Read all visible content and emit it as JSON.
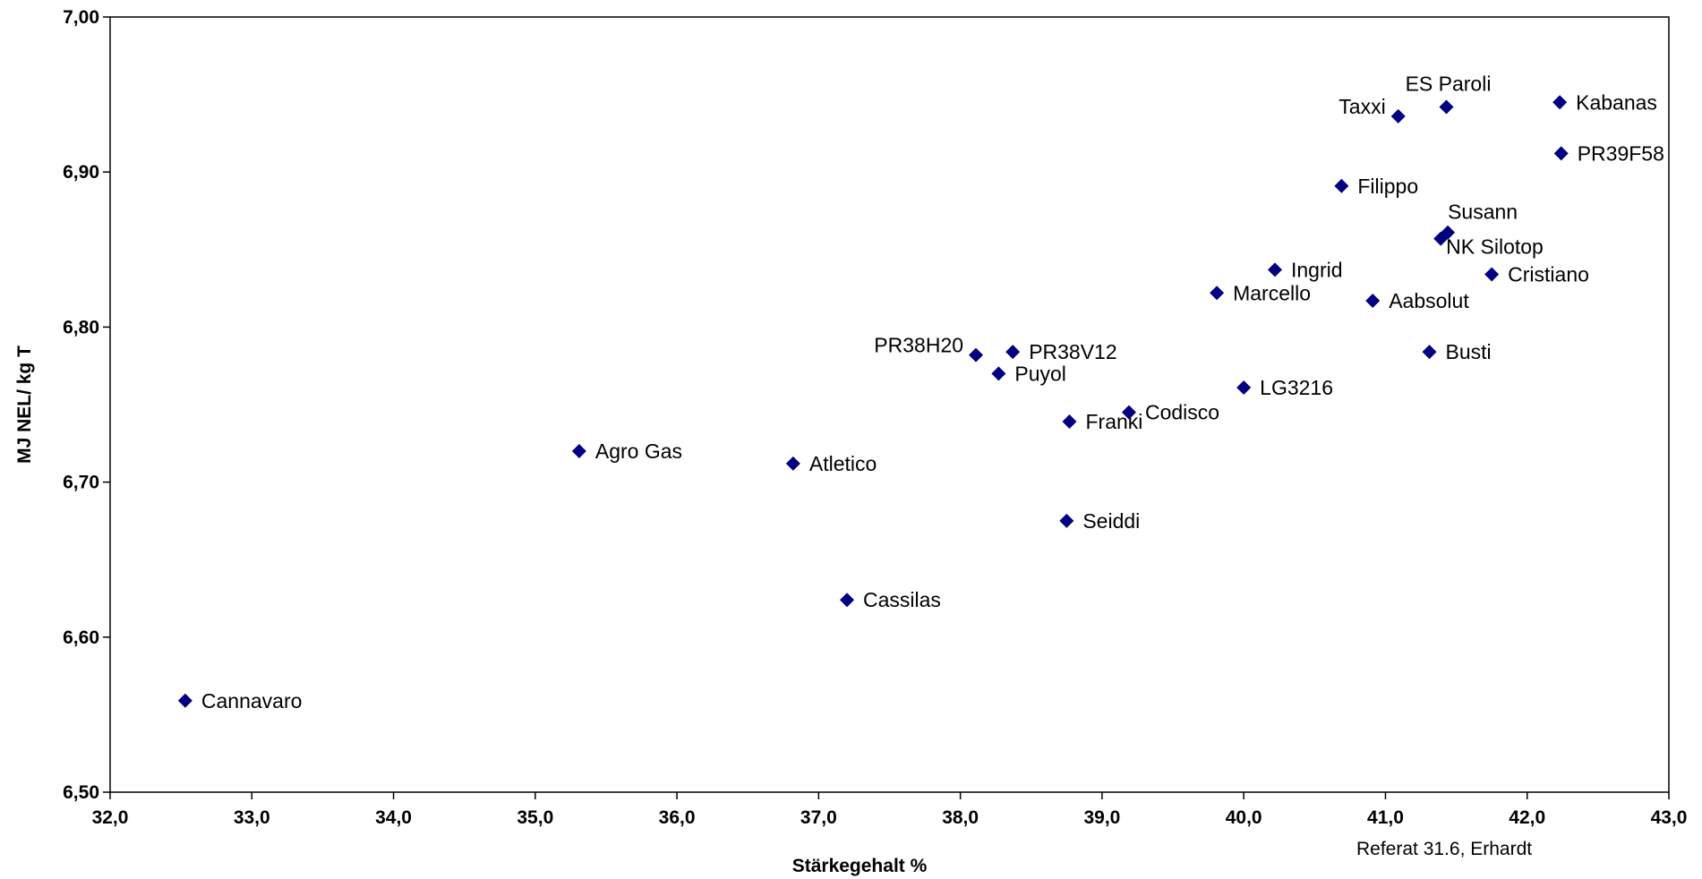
{
  "chart_data": {
    "type": "scatter",
    "xlabel": "Stärkegehalt %",
    "ylabel": "MJ NEL/ kg T",
    "xlim": [
      32,
      43
    ],
    "ylim": [
      6.5,
      7.0
    ],
    "x_ticks": [
      "32,0",
      "33,0",
      "34,0",
      "35,0",
      "36,0",
      "37,0",
      "38,0",
      "39,0",
      "40,0",
      "41,0",
      "42,0",
      "43,0"
    ],
    "y_ticks": [
      "6,50",
      "6,60",
      "6,70",
      "6,80",
      "6,90",
      "7,00"
    ],
    "marker_color": "#000080",
    "note": "Referat 31.6, Erhardt",
    "points": [
      {
        "label": "Cannavaro",
        "x": 32.53,
        "y": 6.559,
        "pos": "right"
      },
      {
        "label": "Agro Gas",
        "x": 35.31,
        "y": 6.72,
        "pos": "right"
      },
      {
        "label": "Atletico",
        "x": 36.82,
        "y": 6.712,
        "pos": "right"
      },
      {
        "label": "Cassilas",
        "x": 37.2,
        "y": 6.624,
        "pos": "right"
      },
      {
        "label": "PR38H20",
        "x": 38.11,
        "y": 6.782,
        "pos": "upper-left"
      },
      {
        "label": "PR38V12",
        "x": 38.37,
        "y": 6.784,
        "pos": "right"
      },
      {
        "label": "Puyol",
        "x": 38.27,
        "y": 6.77,
        "pos": "right"
      },
      {
        "label": "Franki",
        "x": 38.77,
        "y": 6.739,
        "pos": "right"
      },
      {
        "label": "Seiddi",
        "x": 38.75,
        "y": 6.675,
        "pos": "right"
      },
      {
        "label": "Codisco",
        "x": 39.19,
        "y": 6.745,
        "pos": "right"
      },
      {
        "label": "Marcello",
        "x": 39.81,
        "y": 6.822,
        "pos": "right"
      },
      {
        "label": "Ingrid",
        "x": 40.22,
        "y": 6.837,
        "pos": "right"
      },
      {
        "label": "LG3216",
        "x": 40.0,
        "y": 6.761,
        "pos": "right"
      },
      {
        "label": "Filippo",
        "x": 40.69,
        "y": 6.891,
        "pos": "right"
      },
      {
        "label": "Aabsolut",
        "x": 40.91,
        "y": 6.817,
        "pos": "right"
      },
      {
        "label": "Taxxi",
        "x": 41.09,
        "y": 6.936,
        "pos": "upper-left"
      },
      {
        "label": "ES Paroli",
        "x": 41.43,
        "y": 6.942,
        "pos": "above"
      },
      {
        "label": "Susann",
        "x": 41.44,
        "y": 6.861,
        "pos": "above-right"
      },
      {
        "label": "NK Silotop",
        "x": 41.39,
        "y": 6.857,
        "pos": "below-right"
      },
      {
        "label": "Busti",
        "x": 41.31,
        "y": 6.784,
        "pos": "right"
      },
      {
        "label": "Cristiano",
        "x": 41.75,
        "y": 6.834,
        "pos": "right"
      },
      {
        "label": "Kabanas",
        "x": 42.23,
        "y": 6.945,
        "pos": "right"
      },
      {
        "label": "PR39F58",
        "x": 42.24,
        "y": 6.912,
        "pos": "right"
      }
    ]
  }
}
